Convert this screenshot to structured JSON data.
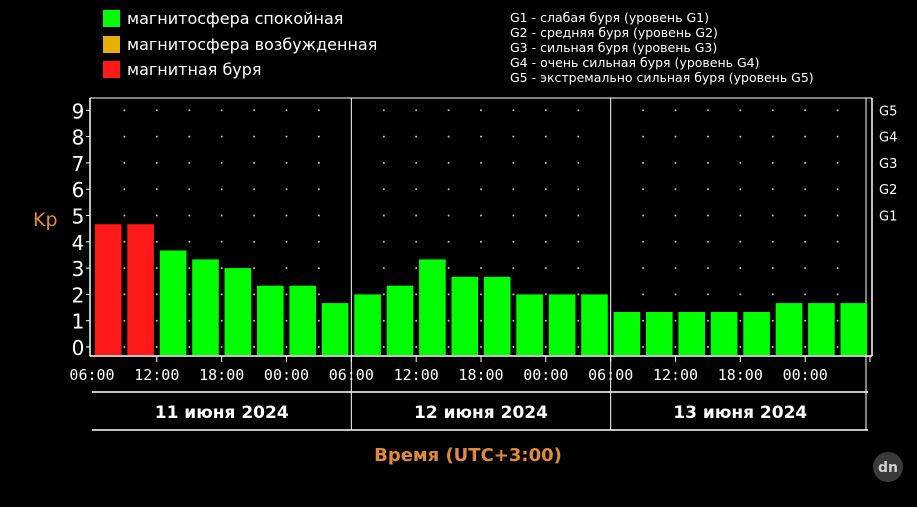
{
  "colors": {
    "quiet": "#00ff00",
    "excited": "#e5b000",
    "storm": "#ff1a1a",
    "axis_label": "#e08a3a",
    "text": "#ffffff",
    "background": "#000000"
  },
  "legend": {
    "items": [
      {
        "label": "магнитосфера спокойная",
        "color": "#00ff00"
      },
      {
        "label": "магнитосфера возбужденная",
        "color": "#e5b000"
      },
      {
        "label": "магнитная буря",
        "color": "#ff1a1a"
      }
    ],
    "storm_levels": [
      "G1 - слабая буря (уровень G1)",
      "G2 - средняя буря (уровень G2)",
      "G3 - сильная буря (уровень G3)",
      "G4 - очень сильная буря (уровень G4)",
      "G5 - экстремально сильная буря (уровень G5)"
    ]
  },
  "watermark": "dn",
  "chart_data": {
    "type": "bar",
    "ylabel": "Kp",
    "xlabel": "Время (UTC+3:00)",
    "ylim": [
      0,
      9
    ],
    "y_ticks": [
      "0",
      "1",
      "2",
      "3",
      "4",
      "5",
      "6",
      "7",
      "8",
      "9"
    ],
    "right_ticks": [
      {
        "label": "G1",
        "value": 5
      },
      {
        "label": "G2",
        "value": 6
      },
      {
        "label": "G3",
        "value": 7
      },
      {
        "label": "G4",
        "value": 8
      },
      {
        "label": "G5",
        "value": 9
      }
    ],
    "x_tick_labels": [
      "06:00",
      "12:00",
      "18:00",
      "00:00",
      "06:00",
      "12:00",
      "18:00",
      "00:00",
      "06:00",
      "12:00",
      "18:00",
      "00:00"
    ],
    "days": [
      "11 июня 2024",
      "12 июня 2024",
      "13 июня 2024"
    ],
    "grid": "dotted",
    "values": [
      4.67,
      4.67,
      3.67,
      3.33,
      3.0,
      2.33,
      2.33,
      1.67,
      2.0,
      2.33,
      3.33,
      2.67,
      2.67,
      2.0,
      2.0,
      2.0,
      1.33,
      1.33,
      1.33,
      1.33,
      1.33,
      1.67,
      1.67,
      1.67
    ],
    "levels": [
      "storm",
      "storm",
      "quiet",
      "quiet",
      "quiet",
      "quiet",
      "quiet",
      "quiet",
      "quiet",
      "quiet",
      "quiet",
      "quiet",
      "quiet",
      "quiet",
      "quiet",
      "quiet",
      "quiet",
      "quiet",
      "quiet",
      "quiet",
      "quiet",
      "quiet",
      "quiet",
      "quiet"
    ]
  }
}
